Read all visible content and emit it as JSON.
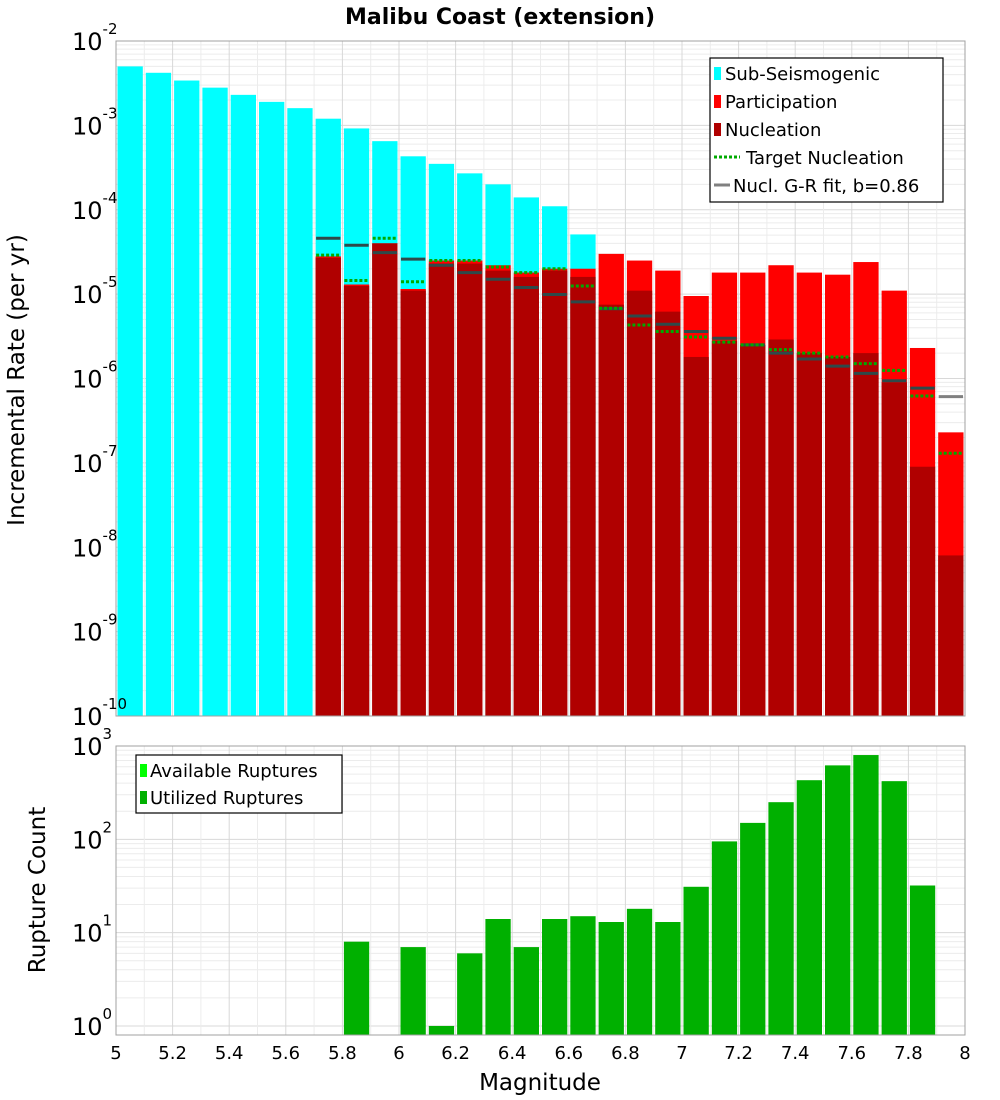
{
  "chart_data": [
    {
      "type": "bar",
      "title": "Malibu Coast (extension)",
      "xlabel": "",
      "ylabel": "Incremental Rate (per yr)",
      "yscale": "log",
      "ylim_exponents": [
        -10,
        -2
      ],
      "xlim": [
        5,
        8
      ],
      "bin_width": 0.1,
      "legend_position": "top-right",
      "legend": [
        {
          "label": "Sub-Seismogenic",
          "style": "bar",
          "color": "#00ffff"
        },
        {
          "label": "Participation",
          "style": "bar",
          "color": "#ff0000"
        },
        {
          "label": "Nucleation",
          "style": "bar",
          "color": "#b00000"
        },
        {
          "label": "Target Nucleation",
          "style": "dotted-line",
          "color": "#00aa00"
        },
        {
          "label": "Nucl. G-R fit, b=0.86",
          "style": "line",
          "color": "#808080"
        }
      ],
      "series": [
        {
          "name": "Sub-Seismogenic",
          "color": "#00ffff",
          "x": [
            5.05,
            5.15,
            5.25,
            5.35,
            5.45,
            5.55,
            5.65,
            5.75,
            5.85,
            5.95,
            6.05,
            6.15,
            6.25,
            6.35,
            6.45,
            6.55,
            6.65
          ],
          "values": [
            0.005,
            0.0042,
            0.0034,
            0.0028,
            0.0023,
            0.0019,
            0.0016,
            0.0012,
            0.00092,
            0.00065,
            0.00043,
            0.00035,
            0.00027,
            0.0002,
            0.00014,
            0.00011,
            5.1e-05
          ]
        },
        {
          "name": "Participation",
          "color": "#ff0000",
          "x": [
            5.75,
            5.85,
            5.95,
            6.05,
            6.15,
            6.25,
            6.35,
            6.45,
            6.55,
            6.65,
            6.75,
            6.85,
            6.95,
            7.05,
            7.15,
            7.25,
            7.35,
            7.45,
            7.55,
            7.65,
            7.75,
            7.85,
            7.95
          ],
          "values": [
            2.8e-05,
            1.3e-05,
            4e-05,
            1.15e-05,
            2.5e-05,
            2.5e-05,
            2.2e-05,
            1.8e-05,
            2e-05,
            2e-05,
            3e-05,
            2.5e-05,
            1.9e-05,
            9.5e-06,
            1.8e-05,
            1.8e-05,
            2.2e-05,
            1.8e-05,
            1.7e-05,
            2.4e-05,
            1.1e-05,
            2.3e-06,
            2.3e-07
          ]
        },
        {
          "name": "Nucleation",
          "color": "#b00000",
          "x": [
            5.75,
            5.85,
            5.95,
            6.05,
            6.15,
            6.25,
            6.35,
            6.45,
            6.55,
            6.65,
            6.75,
            6.85,
            6.95,
            7.05,
            7.15,
            7.25,
            7.35,
            7.45,
            7.55,
            7.65,
            7.75,
            7.85,
            7.95
          ],
          "values": [
            2.7e-05,
            1.25e-05,
            4e-05,
            1.1e-05,
            2.3e-05,
            2.3e-05,
            1.9e-05,
            1.6e-05,
            1.9e-05,
            1.6e-05,
            7.5e-06,
            1.1e-05,
            6.2e-06,
            1.8e-06,
            2.8e-06,
            2.5e-06,
            2.9e-06,
            2e-06,
            1.8e-06,
            2e-06,
            9e-07,
            9e-08,
            8e-09
          ]
        },
        {
          "name": "Target Nucleation",
          "color": "#00aa00",
          "style": "dotted",
          "x": [
            5.75,
            5.85,
            5.95,
            6.05,
            6.15,
            6.25,
            6.35,
            6.45,
            6.55,
            6.65,
            6.75,
            6.85,
            6.95,
            7.05,
            7.15,
            7.25,
            7.35,
            7.45,
            7.55,
            7.65,
            7.75,
            7.85,
            7.95
          ],
          "values": [
            2.9e-05,
            1.45e-05,
            4.6e-05,
            1.4e-05,
            2.5e-05,
            2.5e-05,
            2.1e-05,
            1.8e-05,
            2e-05,
            1.25e-05,
            6.8e-06,
            4.3e-06,
            3.6e-06,
            3.1e-06,
            2.7e-06,
            2.5e-06,
            2.2e-06,
            2e-06,
            1.8e-06,
            1.5e-06,
            1.25e-06,
            6.2e-07,
            1.3e-07
          ]
        },
        {
          "name": "Nucl. G-R fit, b=0.86",
          "color": "#808080",
          "x": [
            5.75,
            5.85,
            5.95,
            6.05,
            6.15,
            6.25,
            6.35,
            6.45,
            6.55,
            6.65,
            6.75,
            6.85,
            6.95,
            7.05,
            7.15,
            7.25,
            7.35,
            7.45,
            7.55,
            7.65,
            7.75,
            7.85,
            7.95
          ],
          "values": [
            4.6e-05,
            3.8e-05,
            3.1e-05,
            2.6e-05,
            2.2e-05,
            1.8e-05,
            1.5e-05,
            1.2e-05,
            9.9e-06,
            8.1e-06,
            6.7e-06,
            5.5e-06,
            4.4e-06,
            3.6e-06,
            3e-06,
            2.5e-06,
            2e-06,
            1.7e-06,
            1.4e-06,
            1.15e-06,
            9.4e-07,
            7.7e-07,
            6.1e-07
          ]
        }
      ]
    },
    {
      "type": "bar",
      "title": "",
      "xlabel": "Magnitude",
      "ylabel": "Rupture Count",
      "yscale": "log",
      "ylim_exponents": [
        0,
        3
      ],
      "ylim": [
        0.8,
        1000
      ],
      "xlim": [
        5,
        8
      ],
      "bin_width": 0.1,
      "x_ticks": [
        "5",
        "5.2",
        "5.4",
        "5.6",
        "5.8",
        "6",
        "6.2",
        "6.4",
        "6.6",
        "6.8",
        "7",
        "7.2",
        "7.4",
        "7.6",
        "7.8",
        "8"
      ],
      "legend_position": "top-left",
      "legend": [
        {
          "label": "Available Ruptures",
          "style": "bar",
          "color": "#00ff00"
        },
        {
          "label": "Utilized Ruptures",
          "style": "bar",
          "color": "#00b000"
        }
      ],
      "series": [
        {
          "name": "Utilized Ruptures",
          "color": "#00b000",
          "x": [
            5.85,
            6.05,
            6.15,
            6.25,
            6.35,
            6.45,
            6.55,
            6.65,
            6.75,
            6.85,
            6.95,
            7.05,
            7.15,
            7.25,
            7.35,
            7.45,
            7.55,
            7.65,
            7.75,
            7.85
          ],
          "values": [
            8,
            7,
            1,
            6,
            14,
            7,
            14,
            15,
            13,
            18,
            13,
            31,
            95,
            150,
            250,
            430,
            620,
            800,
            420,
            32
          ]
        }
      ]
    }
  ]
}
